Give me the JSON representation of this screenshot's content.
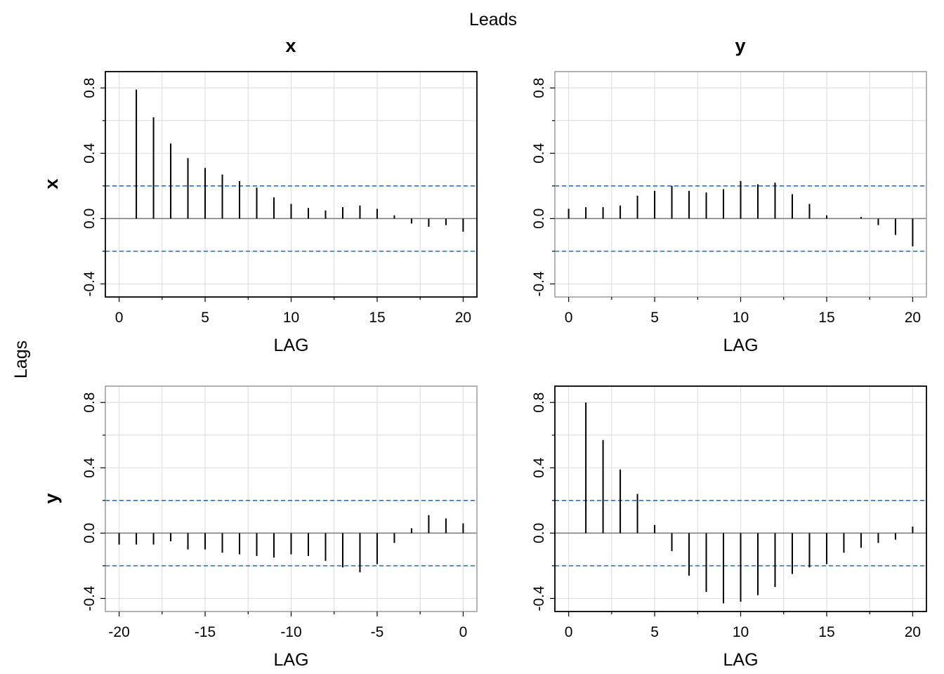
{
  "figure": {
    "top_label": "Leads",
    "left_label": "Lags",
    "column_titles": [
      "x",
      "y"
    ],
    "row_titles": [
      "x",
      "y"
    ]
  },
  "style": {
    "spike_color": "#000000",
    "band_color": "#1f6fd1",
    "zero_color": "#808080",
    "grid_color": "#e0e0e0",
    "frame_active": "#000000",
    "frame_inactive": "#a0a0a0"
  },
  "chart_data": [
    {
      "type": "bar",
      "subtype": "ccf-spike",
      "panel": "x vs x",
      "xlabel": "LAG",
      "ylabel": "",
      "xlim": [
        -0.8,
        20.8
      ],
      "ylim": [
        -0.48,
        0.9
      ],
      "xticks": [
        0,
        5,
        10,
        15,
        20
      ],
      "yticks": [
        -0.4,
        0.0,
        0.4,
        0.8
      ],
      "confidence_band": 0.2,
      "grid": true,
      "x": [
        1,
        2,
        3,
        4,
        5,
        6,
        7,
        8,
        9,
        10,
        11,
        12,
        13,
        14,
        15,
        16,
        17,
        18,
        19,
        20
      ],
      "values": [
        0.79,
        0.62,
        0.46,
        0.37,
        0.31,
        0.27,
        0.23,
        0.19,
        0.13,
        0.09,
        0.065,
        0.05,
        0.07,
        0.08,
        0.06,
        0.02,
        -0.03,
        -0.05,
        -0.04,
        -0.08
      ]
    },
    {
      "type": "bar",
      "subtype": "ccf-spike",
      "panel": "x vs y",
      "xlabel": "LAG",
      "ylabel": "",
      "xlim": [
        -0.8,
        20.8
      ],
      "ylim": [
        -0.48,
        0.9
      ],
      "xticks": [
        0,
        5,
        10,
        15,
        20
      ],
      "yticks": [
        -0.4,
        0.0,
        0.4,
        0.8
      ],
      "confidence_band": 0.2,
      "grid": true,
      "x": [
        0,
        1,
        2,
        3,
        4,
        5,
        6,
        7,
        8,
        9,
        10,
        11,
        12,
        13,
        14,
        15,
        16,
        17,
        18,
        19,
        20
      ],
      "values": [
        0.06,
        0.07,
        0.07,
        0.08,
        0.14,
        0.17,
        0.2,
        0.17,
        0.16,
        0.18,
        0.23,
        0.21,
        0.22,
        0.15,
        0.09,
        0.02,
        0.0,
        0.01,
        -0.04,
        -0.1,
        -0.17
      ]
    },
    {
      "type": "bar",
      "subtype": "ccf-spike",
      "panel": "y vs x",
      "xlabel": "LAG",
      "ylabel": "",
      "xlim": [
        -20.8,
        0.8
      ],
      "ylim": [
        -0.48,
        0.9
      ],
      "xticks": [
        -20,
        -15,
        -10,
        -5,
        0
      ],
      "yticks": [
        -0.4,
        0.0,
        0.4,
        0.8
      ],
      "confidence_band": 0.2,
      "grid": true,
      "x": [
        -20,
        -19,
        -18,
        -17,
        -16,
        -15,
        -14,
        -13,
        -12,
        -11,
        -10,
        -9,
        -8,
        -7,
        -6,
        -5,
        -4,
        -3,
        -2,
        -1,
        0
      ],
      "values": [
        -0.07,
        -0.07,
        -0.07,
        -0.05,
        -0.1,
        -0.1,
        -0.12,
        -0.13,
        -0.14,
        -0.15,
        -0.13,
        -0.14,
        -0.17,
        -0.21,
        -0.24,
        -0.19,
        -0.06,
        0.03,
        0.11,
        0.09,
        0.06
      ]
    },
    {
      "type": "bar",
      "subtype": "ccf-spike",
      "panel": "y vs y",
      "xlabel": "LAG",
      "ylabel": "",
      "xlim": [
        -0.8,
        20.8
      ],
      "ylim": [
        -0.48,
        0.9
      ],
      "xticks": [
        0,
        5,
        10,
        15,
        20
      ],
      "yticks": [
        -0.4,
        0.0,
        0.4,
        0.8
      ],
      "confidence_band": 0.2,
      "grid": true,
      "x": [
        1,
        2,
        3,
        4,
        5,
        6,
        7,
        8,
        9,
        10,
        11,
        12,
        13,
        14,
        15,
        16,
        17,
        18,
        19,
        20
      ],
      "values": [
        0.8,
        0.57,
        0.39,
        0.24,
        0.05,
        -0.11,
        -0.26,
        -0.36,
        -0.43,
        -0.42,
        -0.38,
        -0.33,
        -0.25,
        -0.21,
        -0.19,
        -0.12,
        -0.09,
        -0.06,
        -0.04,
        0.04
      ]
    }
  ]
}
